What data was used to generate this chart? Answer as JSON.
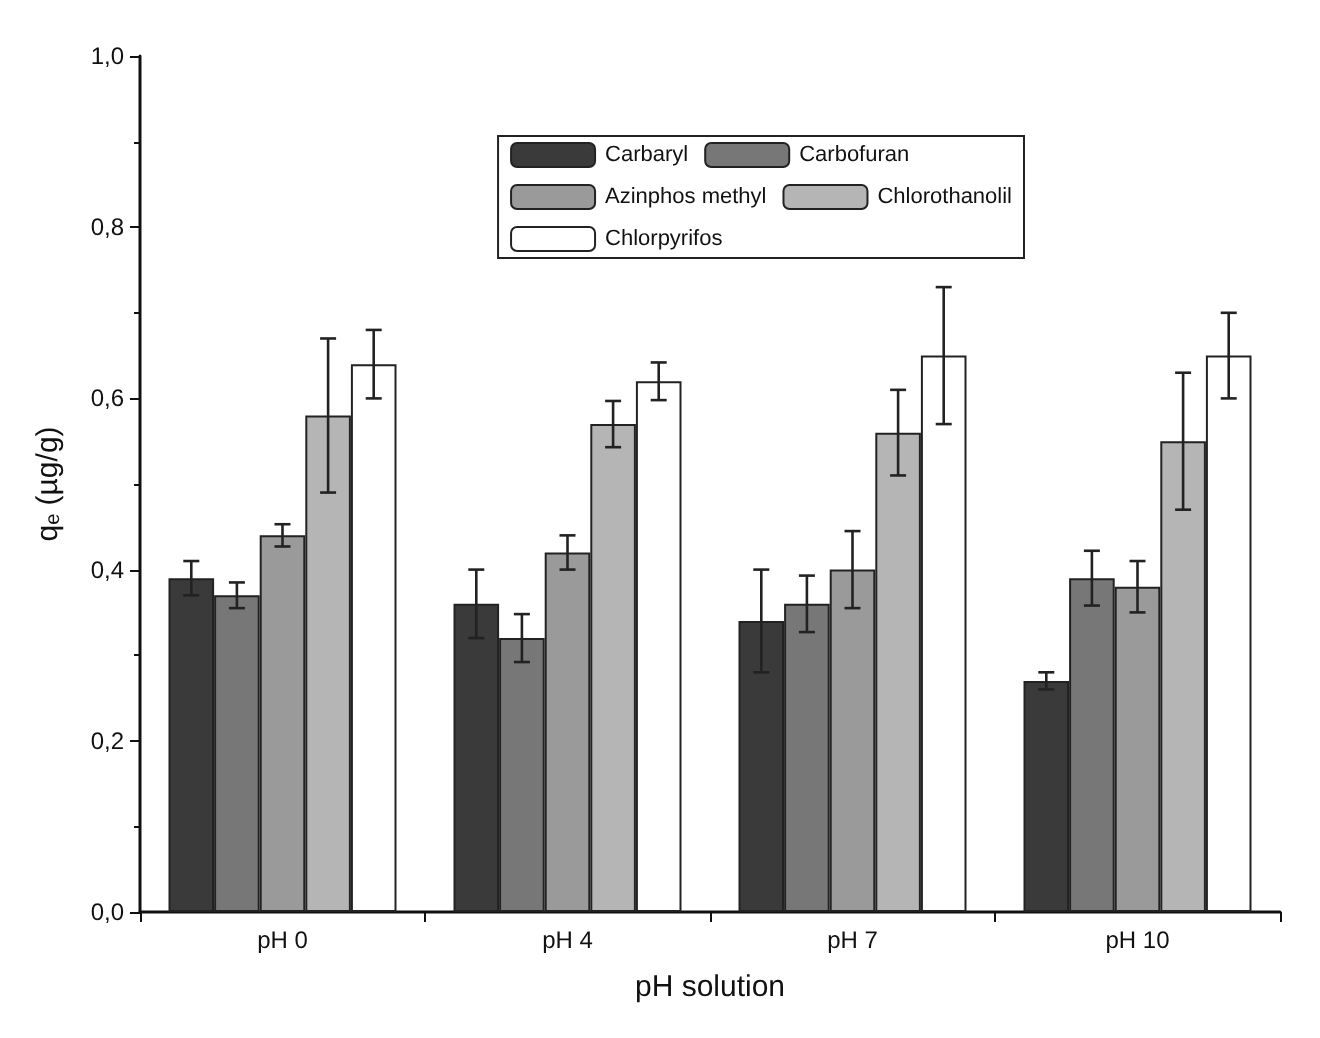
{
  "chart_data": {
    "type": "bar",
    "xlabel": "pH solution",
    "ylabel": "q$_{e}$ (µg/g)",
    "categories": [
      "pH 0",
      "pH 4",
      "pH 7",
      "pH 10"
    ],
    "series": [
      {
        "name": "Carbaryl",
        "color": "#3a3a3a",
        "values": [
          0.39,
          0.36,
          0.34,
          0.27
        ],
        "errors": [
          0.02,
          0.04,
          0.06,
          0.01
        ]
      },
      {
        "name": "Carbofuran",
        "color": "#777777",
        "values": [
          0.37,
          0.32,
          0.36,
          0.39
        ],
        "errors": [
          0.015,
          0.028,
          0.033,
          0.032
        ]
      },
      {
        "name": "Azinphos methyl",
        "color": "#9a9a9a",
        "values": [
          0.44,
          0.42,
          0.4,
          0.38
        ],
        "errors": [
          0.013,
          0.02,
          0.045,
          0.03
        ]
      },
      {
        "name": "Chlorothanolil",
        "color": "#b5b5b5",
        "values": [
          0.58,
          0.57,
          0.56,
          0.55
        ],
        "errors": [
          0.09,
          0.027,
          0.05,
          0.08
        ]
      },
      {
        "name": "Chlorpyrifos",
        "color": "#ffffff",
        "values": [
          0.64,
          0.62,
          0.65,
          0.65
        ],
        "errors": [
          0.04,
          0.022,
          0.08,
          0.05
        ]
      }
    ],
    "ylim": [
      0,
      1
    ],
    "yticks": [
      {
        "value": 0,
        "label": "0,0"
      },
      {
        "value": 0.2,
        "label": "0,2"
      },
      {
        "value": 0.4,
        "label": "0,4"
      },
      {
        "value": 0.6,
        "label": "0,6"
      },
      {
        "value": 0.8,
        "label": "0,8"
      },
      {
        "value": 1,
        "label": "1,0"
      }
    ],
    "grid": false,
    "legend": "top right"
  }
}
